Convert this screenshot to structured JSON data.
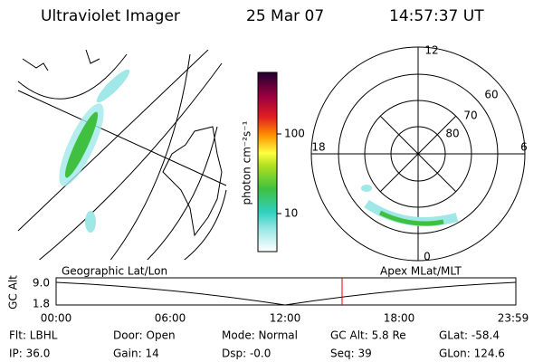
{
  "header": {
    "title": "Ultraviolet Imager",
    "date": "25 Mar 07",
    "time": "14:57:37 UT"
  },
  "colorbar": {
    "label": "photon cm⁻²s⁻¹",
    "ticks": [
      "100",
      "10"
    ]
  },
  "polar": {
    "mlt_labels": [
      "12",
      "18",
      "6",
      "0"
    ],
    "mlat_labels": [
      "60",
      "70",
      "80"
    ]
  },
  "altitude_plot": {
    "left_title": "Geographic Lat/Lon",
    "right_title": "Apex MLat/MLT",
    "y_label": "GC Alt",
    "y_ticks": [
      "9.0",
      "1.8"
    ],
    "x_ticks": [
      "00:00",
      "06:00",
      "12:00",
      "18:00",
      "23:59"
    ]
  },
  "info": {
    "rows": [
      [
        "Flt: LBHL",
        "Door: Open",
        "Mode: Normal",
        "GC Alt: 5.8 Re",
        "GLat: -58.4"
      ],
      [
        "IP: 36.0",
        "Gain: 14",
        "Dsp: -0.0",
        "Seq: 39",
        "GLon: 124.6"
      ]
    ]
  }
}
